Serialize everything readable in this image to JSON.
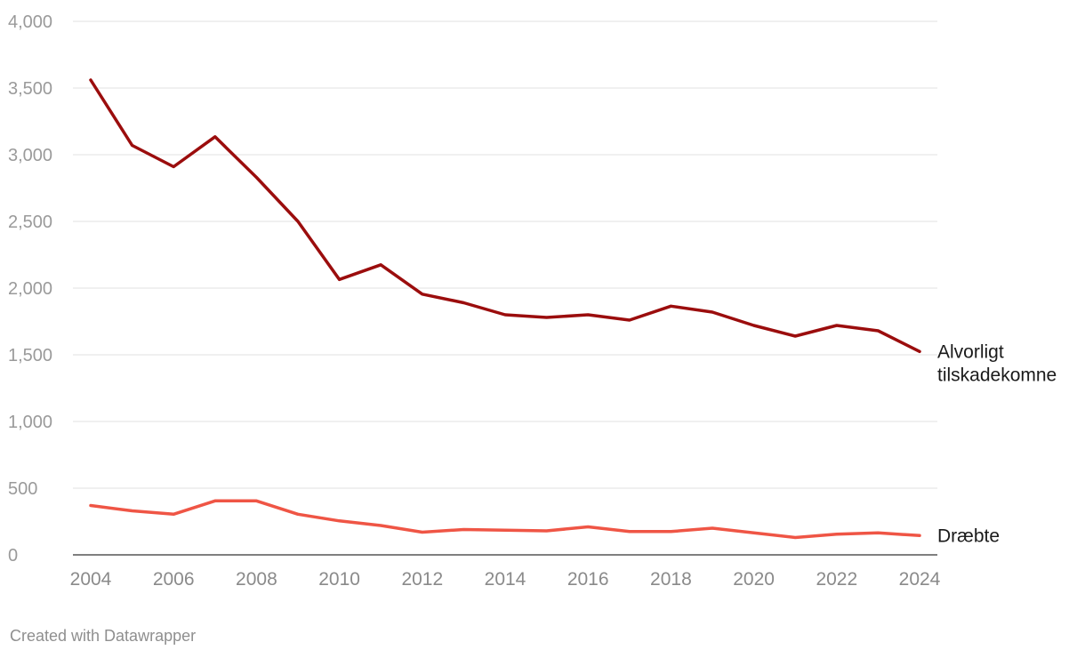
{
  "chart_data": {
    "type": "line",
    "title": "",
    "xlabel": "",
    "ylabel": "",
    "x": [
      2004,
      2005,
      2006,
      2007,
      2008,
      2009,
      2010,
      2011,
      2012,
      2013,
      2014,
      2015,
      2016,
      2017,
      2018,
      2019,
      2020,
      2021,
      2022,
      2023,
      2024
    ],
    "x_ticks": [
      "2004",
      "2006",
      "2008",
      "2010",
      "2012",
      "2014",
      "2016",
      "2018",
      "2020",
      "2022",
      "2024"
    ],
    "ylim": [
      0,
      4000
    ],
    "y_ticks": [
      "0",
      "500",
      "1,000",
      "1,500",
      "2,000",
      "2,500",
      "3,000",
      "3,500",
      "4,000"
    ],
    "grid": true,
    "series": [
      {
        "name": "Alvorligt tilskadekomne",
        "label_lines": [
          "Alvorligt",
          "tilskadekomne"
        ],
        "color": "#9b0d0d",
        "values": [
          3560,
          3070,
          2910,
          3135,
          2830,
          2500,
          2065,
          2175,
          1955,
          1890,
          1800,
          1780,
          1800,
          1760,
          1865,
          1820,
          1720,
          1640,
          1720,
          1680,
          1525
        ]
      },
      {
        "name": "Dræbte",
        "label_lines": [
          "Dræbte"
        ],
        "color": "#ef5545",
        "values": [
          370,
          330,
          305,
          405,
          405,
          305,
          255,
          220,
          170,
          190,
          185,
          180,
          210,
          175,
          175,
          200,
          165,
          130,
          155,
          165,
          145
        ]
      }
    ]
  },
  "footer": {
    "credit": "Created with Datawrapper"
  }
}
